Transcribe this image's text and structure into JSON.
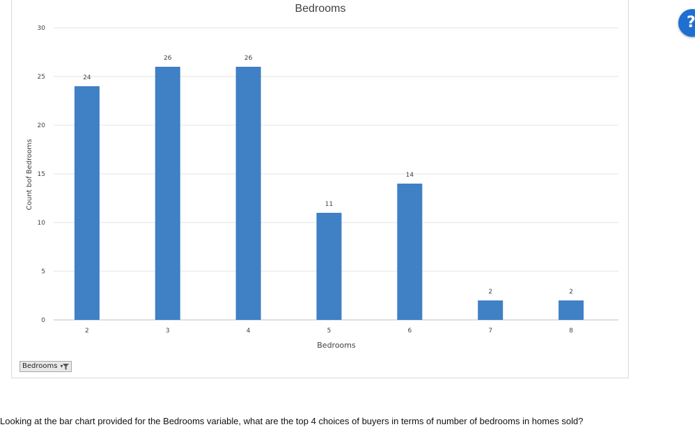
{
  "chart_data": {
    "type": "bar",
    "title": "Bedrooms",
    "xlabel": "Bedrooms",
    "ylabel": "Count bof Bedrooms",
    "categories": [
      "2",
      "3",
      "4",
      "5",
      "6",
      "7",
      "8"
    ],
    "values": [
      24,
      26,
      26,
      11,
      14,
      2,
      2
    ],
    "ylim": [
      0,
      30
    ],
    "yticks": [
      0,
      5,
      10,
      15,
      20,
      25,
      30
    ],
    "bar_color": "#4080c4",
    "grid": true,
    "data_labels": true
  },
  "filter_button": {
    "label": "Bedrooms"
  },
  "question": {
    "text": "Looking at the bar chart provided for the Bedrooms variable, what are the top 4 choices of buyers in terms of number of bedrooms in homes sold?"
  },
  "help": {
    "symbol": "?"
  }
}
